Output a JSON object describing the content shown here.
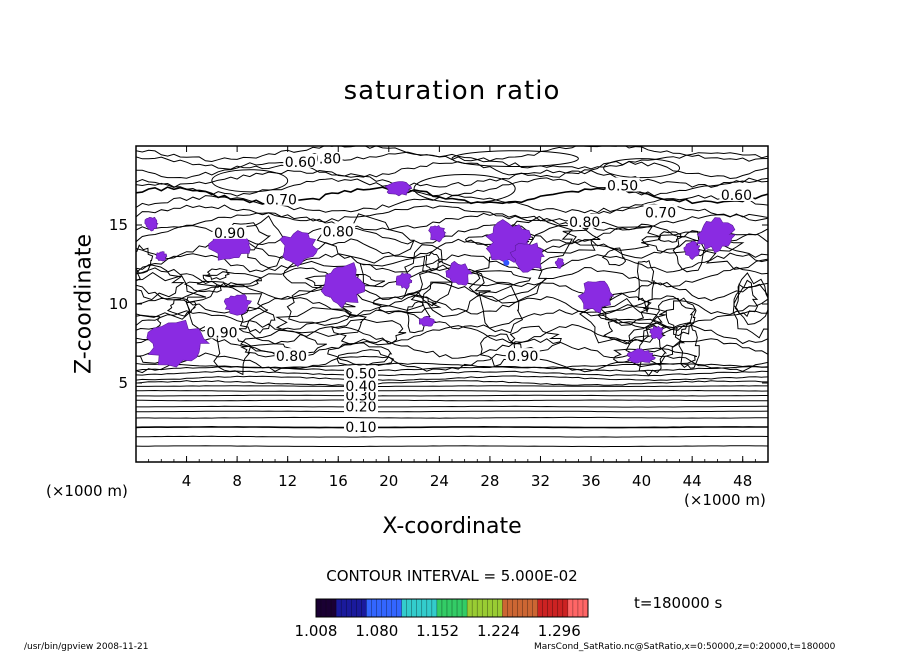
{
  "chart_data": {
    "type": "contour",
    "title": "saturation ratio",
    "xlabel": "X-coordinate",
    "ylabel": "Z-coordinate",
    "x_unit": "(×1000 m)",
    "y_unit": "(×1000 m)",
    "xlim": [
      0,
      50
    ],
    "ylim": [
      0,
      20
    ],
    "x_ticks": [
      4,
      8,
      12,
      16,
      20,
      24,
      28,
      32,
      36,
      40,
      44,
      48
    ],
    "y_ticks": [
      5,
      10,
      15
    ],
    "contour_interval_text": "CONTOUR INTERVAL = 5.000E-02",
    "time_text": "t=180000 s",
    "contour_labels": [
      {
        "text": "0.10",
        "x": 17.8,
        "z": 2.2
      },
      {
        "text": "0.20",
        "x": 17.8,
        "z": 3.5
      },
      {
        "text": "0.30",
        "x": 17.8,
        "z": 4.2
      },
      {
        "text": "0.40",
        "x": 17.8,
        "z": 4.8
      },
      {
        "text": "0.50",
        "x": 17.8,
        "z": 5.6
      },
      {
        "text": "0.80",
        "x": 12.3,
        "z": 6.7
      },
      {
        "text": "0.90",
        "x": 6.8,
        "z": 8.2
      },
      {
        "text": "0.90",
        "x": 30.6,
        "z": 6.7
      },
      {
        "text": "0.90",
        "x": 7.4,
        "z": 14.5
      },
      {
        "text": "0.80",
        "x": 16.0,
        "z": 14.6
      },
      {
        "text": "0.80",
        "x": 15.0,
        "z": 19.2
      },
      {
        "text": "0.70",
        "x": 11.5,
        "z": 16.6
      },
      {
        "text": "0.60",
        "x": 13.0,
        "z": 19.0
      },
      {
        "text": "0.50",
        "x": 38.5,
        "z": 17.5
      },
      {
        "text": "0.60",
        "x": 47.5,
        "z": 16.9
      },
      {
        "text": "0.70",
        "x": 41.5,
        "z": 15.8
      },
      {
        "text": "0.80",
        "x": 35.5,
        "z": 15.2
      }
    ],
    "shaded_region_color": "#8a2be2",
    "colorbar": {
      "labels": [
        "1.008",
        "1.080",
        "1.152",
        "1.224",
        "1.296"
      ],
      "min": 1.008,
      "max": 1.33,
      "colors": [
        "#1a0033",
        "#1a1a9c",
        "#3366ff",
        "#33cccc",
        "#33cc66",
        "#99cc33",
        "#cc6633",
        "#cc2222",
        "#ff6666"
      ]
    }
  },
  "footer": {
    "left": "/usr/bin/gpview   2008-11-21",
    "right": "MarsCond_SatRatio.nc@SatRatio,x=0:50000,z=0:20000,t=180000"
  }
}
